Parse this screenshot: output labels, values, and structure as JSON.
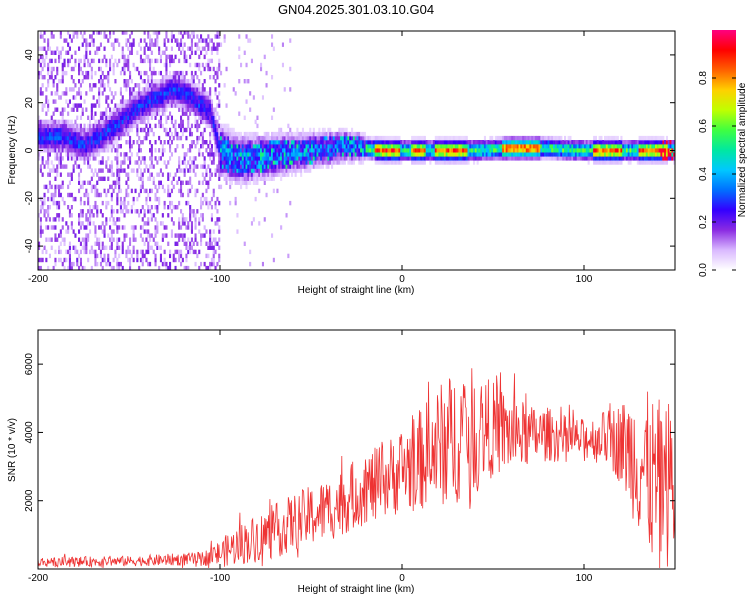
{
  "page_title": "GN04.2025.301.03.10.G04",
  "chart_data": [
    {
      "type": "heatmap",
      "name": "spectrogram",
      "xlabel": "Height of straight line (km)",
      "ylabel": "Frequency (Hz)",
      "xlim": [
        -200,
        150
      ],
      "ylim": [
        -50,
        50
      ],
      "x_ticks": [
        "-200",
        "-100",
        "0",
        "100"
      ],
      "y_ticks": [
        "-40",
        "-20",
        "0",
        "20",
        "40"
      ],
      "x_tick_values": [
        -200,
        -100,
        0,
        100
      ],
      "y_tick_values": [
        -40,
        -20,
        0,
        20,
        40
      ],
      "colorbar": {
        "label": "Normalized spectral amplitude",
        "range": [
          0,
          1
        ],
        "ticks": [
          "0.0",
          "0.2",
          "0.4",
          "0.6",
          "0.8"
        ],
        "tick_values": [
          0.0,
          0.2,
          0.4,
          0.6,
          0.8
        ],
        "colors": [
          "#ffffff",
          "#d9b8ff",
          "#8a2be2",
          "#3300ff",
          "#0070ff",
          "#00c8ff",
          "#00e8a0",
          "#40ff40",
          "#c0ff00",
          "#ffd000",
          "#ff6000",
          "#ff0000",
          "#ff0080"
        ]
      },
      "ridge": {
        "description": "signal center frequency vs height",
        "x": [
          -185,
          -175,
          -165,
          -155,
          -145,
          -135,
          -125,
          -115,
          -105,
          -100,
          -90,
          -80,
          -70,
          -60,
          -50,
          -40,
          -30,
          -20,
          -10,
          0,
          20,
          40,
          60,
          80,
          100,
          120,
          140,
          150
        ],
        "y": [
          6,
          2,
          6,
          12,
          18,
          22,
          26,
          22,
          16,
          0,
          -4,
          -3,
          -2,
          -1,
          0,
          1,
          2,
          1,
          0,
          0,
          0,
          0,
          1,
          1,
          0,
          0,
          0,
          0
        ]
      }
    },
    {
      "type": "line",
      "name": "snr",
      "xlabel": "Height of straight line (km)",
      "ylabel": "SNR (10 * v/v)",
      "xlim": [
        -200,
        150
      ],
      "ylim": [
        0,
        7000
      ],
      "x_ticks": [
        "-200",
        "-100",
        "0",
        "100"
      ],
      "y_ticks": [
        "2000",
        "4000",
        "6000"
      ],
      "x_tick_values": [
        -200,
        -100,
        0,
        100
      ],
      "y_tick_values": [
        2000,
        4000,
        6000
      ],
      "color": "#ee3333",
      "envelope": {
        "x": [
          -200,
          -150,
          -110,
          -100,
          -90,
          -80,
          -70,
          -60,
          -50,
          -40,
          -30,
          -20,
          -10,
          0,
          10,
          20,
          30,
          40,
          50,
          60,
          70,
          80,
          90,
          100,
          110,
          120,
          130,
          140,
          150
        ],
        "mean": [
          200,
          230,
          300,
          450,
          700,
          900,
          1100,
          1350,
          1550,
          1750,
          2050,
          2350,
          2600,
          2900,
          3200,
          3600,
          3900,
          4100,
          4100,
          3950,
          3900,
          3950,
          3800,
          3800,
          3900,
          3700,
          3200,
          2400,
          2600
        ],
        "amplitude": [
          150,
          150,
          200,
          400,
          600,
          700,
          800,
          850,
          900,
          950,
          1000,
          1050,
          1100,
          1300,
          1500,
          1800,
          2000,
          1800,
          1400,
          1200,
          900,
          800,
          700,
          600,
          700,
          1200,
          2200,
          2600,
          2400
        ]
      }
    }
  ]
}
